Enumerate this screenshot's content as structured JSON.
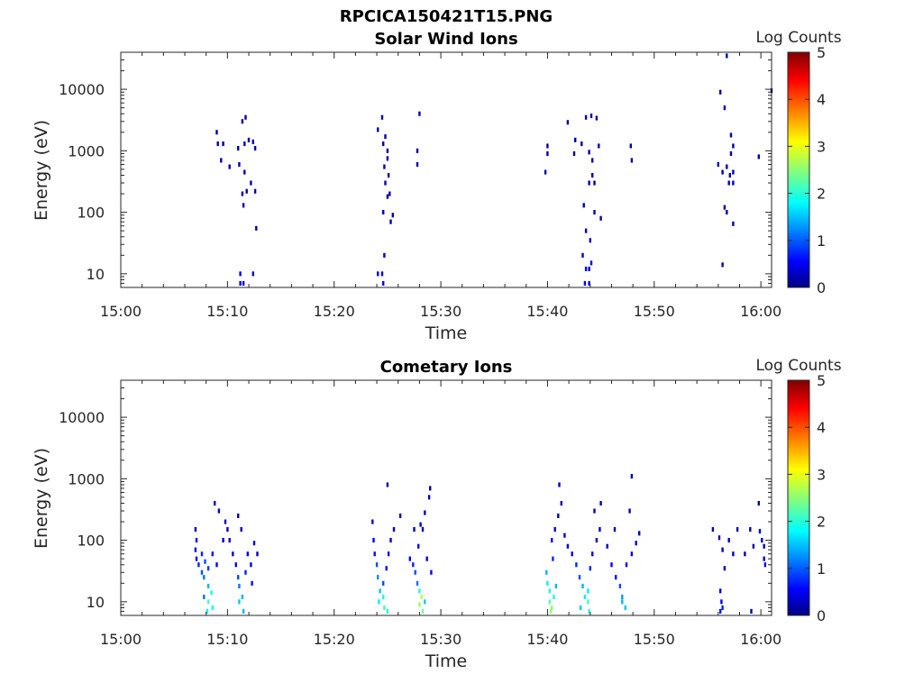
{
  "figure": {
    "title": "RPCICA150421T15.PNG"
  },
  "colormap": {
    "name": "jet",
    "stops": [
      "#00007f",
      "#0000ff",
      "#00ffff",
      "#ffff00",
      "#ff0000",
      "#7f0000"
    ]
  },
  "chart_data": [
    {
      "type": "heatmap",
      "title": "Solar Wind Ions",
      "xlabel": "Time",
      "ylabel": "Energy (eV)",
      "x_ticks": [
        "15:00",
        "15:10",
        "15:20",
        "15:30",
        "15:40",
        "15:50",
        "16:00"
      ],
      "x_range_minutes": [
        0,
        61
      ],
      "y_ticks": [
        {
          "value": 10,
          "label": "10"
        },
        {
          "value": 100,
          "label": "100"
        },
        {
          "value": 1000,
          "label": "1000"
        },
        {
          "value": 10000,
          "label": "10000"
        }
      ],
      "y_scale": "log",
      "ylim": [
        6,
        40000
      ],
      "colorbar": {
        "label": "Log Counts",
        "min": 0,
        "max": 5,
        "ticks": [
          "0",
          "1",
          "2",
          "3",
          "4",
          "5"
        ]
      },
      "legend": "none",
      "grid": false,
      "cells": [
        [
          9.0,
          2000,
          0.2
        ],
        [
          9.1,
          1300,
          0.2
        ],
        [
          9.6,
          1300,
          0.2
        ],
        [
          9.4,
          700,
          0.2
        ],
        [
          10.2,
          550,
          0.2
        ],
        [
          11.0,
          1100,
          0.2
        ],
        [
          11.4,
          3000,
          0.2
        ],
        [
          11.7,
          3500,
          0.2
        ],
        [
          11.6,
          1300,
          0.2
        ],
        [
          12.0,
          1500,
          0.2
        ],
        [
          12.4,
          1400,
          0.2
        ],
        [
          12.6,
          1100,
          0.2
        ],
        [
          11.1,
          600,
          0.2
        ],
        [
          11.6,
          450,
          0.2
        ],
        [
          12.2,
          300,
          0.2
        ],
        [
          11.8,
          220,
          0.2
        ],
        [
          11.4,
          200,
          0.2
        ],
        [
          12.6,
          220,
          0.2
        ],
        [
          11.5,
          130,
          0.2
        ],
        [
          12.7,
          55,
          0.2
        ],
        [
          11.2,
          10,
          0.5
        ],
        [
          11.2,
          7,
          0.5
        ],
        [
          11.5,
          7,
          0.3
        ],
        [
          12.4,
          10,
          0.3
        ],
        [
          24.1,
          2200,
          0.2
        ],
        [
          24.5,
          3500,
          0.2
        ],
        [
          24.8,
          1700,
          0.2
        ],
        [
          24.6,
          1300,
          0.2
        ],
        [
          25.0,
          1000,
          0.2
        ],
        [
          25.0,
          750,
          0.2
        ],
        [
          24.7,
          550,
          0.2
        ],
        [
          25.1,
          400,
          0.2
        ],
        [
          24.8,
          300,
          0.2
        ],
        [
          25.2,
          200,
          0.2
        ],
        [
          25.0,
          180,
          0.2
        ],
        [
          25.5,
          90,
          0.2
        ],
        [
          25.3,
          70,
          0.2
        ],
        [
          24.6,
          100,
          0.2
        ],
        [
          28.0,
          4000,
          0.2
        ],
        [
          27.8,
          1000,
          0.2
        ],
        [
          27.8,
          600,
          0.2
        ],
        [
          24.1,
          10,
          0.4
        ],
        [
          24.5,
          10,
          0.5
        ],
        [
          24.6,
          7,
          0.5
        ],
        [
          24.7,
          20,
          0.3
        ],
        [
          39.8,
          450,
          0.2
        ],
        [
          40.0,
          1200,
          0.2
        ],
        [
          40.0,
          900,
          0.2
        ],
        [
          41.9,
          2900,
          0.2
        ],
        [
          42.6,
          1500,
          0.2
        ],
        [
          42.5,
          900,
          0.2
        ],
        [
          43.2,
          1300,
          0.2
        ],
        [
          43.6,
          3500,
          0.2
        ],
        [
          44.1,
          3700,
          0.2
        ],
        [
          44.6,
          3400,
          0.2
        ],
        [
          44.2,
          700,
          0.2
        ],
        [
          44.8,
          1200,
          0.2
        ],
        [
          43.9,
          950,
          0.2
        ],
        [
          44.2,
          400,
          0.2
        ],
        [
          43.9,
          300,
          0.2
        ],
        [
          44.4,
          300,
          0.2
        ],
        [
          43.4,
          130,
          0.2
        ],
        [
          44.4,
          100,
          0.2
        ],
        [
          45.0,
          80,
          0.2
        ],
        [
          43.6,
          50,
          0.2
        ],
        [
          44.0,
          35,
          0.3
        ],
        [
          43.3,
          20,
          0.4
        ],
        [
          43.6,
          12,
          0.5
        ],
        [
          43.9,
          12,
          0.5
        ],
        [
          44.1,
          15,
          0.5
        ],
        [
          43.5,
          7,
          0.6
        ],
        [
          43.9,
          7,
          0.6
        ],
        [
          47.8,
          1200,
          0.2
        ],
        [
          47.9,
          700,
          0.2
        ],
        [
          56.2,
          9000,
          0.2
        ],
        [
          56.8,
          35000,
          0.2
        ],
        [
          56.6,
          5000,
          0.2
        ],
        [
          57.2,
          1800,
          0.2
        ],
        [
          57.4,
          1200,
          0.2
        ],
        [
          57.2,
          900,
          0.2
        ],
        [
          56.0,
          600,
          0.2
        ],
        [
          56.4,
          450,
          0.2
        ],
        [
          56.8,
          550,
          0.2
        ],
        [
          57.1,
          400,
          0.2
        ],
        [
          57.4,
          450,
          0.2
        ],
        [
          57.0,
          300,
          0.3
        ],
        [
          57.4,
          300,
          0.3
        ],
        [
          56.6,
          120,
          0.2
        ],
        [
          56.8,
          100,
          0.2
        ],
        [
          57.4,
          65,
          0.2
        ],
        [
          56.4,
          14,
          0.3
        ],
        [
          59.8,
          800,
          0.2
        ],
        [
          61.0,
          9500,
          0.2
        ]
      ]
    },
    {
      "type": "heatmap",
      "title": "Cometary Ions",
      "xlabel": "Time",
      "ylabel": "Energy (eV)",
      "x_ticks": [
        "15:00",
        "15:10",
        "15:20",
        "15:30",
        "15:40",
        "15:50",
        "16:00"
      ],
      "x_range_minutes": [
        0,
        61
      ],
      "y_ticks": [
        {
          "value": 10,
          "label": "10"
        },
        {
          "value": 100,
          "label": "100"
        },
        {
          "value": 1000,
          "label": "1000"
        },
        {
          "value": 10000,
          "label": "10000"
        }
      ],
      "y_scale": "log",
      "ylim": [
        6,
        40000
      ],
      "colorbar": {
        "label": "Log Counts",
        "min": 0,
        "max": 5,
        "ticks": [
          "0",
          "1",
          "2",
          "3",
          "4",
          "5"
        ]
      },
      "legend": "none",
      "grid": false,
      "cells": [
        [
          7.0,
          150,
          0.3
        ],
        [
          7.1,
          100,
          0.5
        ],
        [
          7.0,
          70,
          0.5
        ],
        [
          7.1,
          50,
          0.6
        ],
        [
          7.3,
          40,
          0.8
        ],
        [
          7.6,
          60,
          0.8
        ],
        [
          7.9,
          45,
          1.0
        ],
        [
          8.2,
          35,
          0.9
        ],
        [
          7.8,
          25,
          1.2
        ],
        [
          8.2,
          18,
          1.5
        ],
        [
          8.5,
          14,
          2.0
        ],
        [
          8.2,
          10,
          2.2
        ],
        [
          8.6,
          8,
          2.0
        ],
        [
          8.1,
          7,
          1.8
        ],
        [
          7.8,
          12,
          1.2
        ],
        [
          7.6,
          30,
          1.0
        ],
        [
          8.6,
          60,
          0.7
        ],
        [
          9.0,
          40,
          0.6
        ],
        [
          9.2,
          300,
          0.4
        ],
        [
          8.8,
          400,
          0.3
        ],
        [
          9.8,
          200,
          0.3
        ],
        [
          10.2,
          100,
          0.4
        ],
        [
          10.5,
          60,
          0.4
        ],
        [
          10.8,
          40,
          0.5
        ],
        [
          11.0,
          250,
          0.3
        ],
        [
          11.3,
          150,
          0.3
        ],
        [
          11.0,
          25,
          1.0
        ],
        [
          11.1,
          18,
          1.2
        ],
        [
          11.4,
          12,
          1.5
        ],
        [
          11.1,
          10,
          1.6
        ],
        [
          11.5,
          7,
          1.5
        ],
        [
          11.7,
          30,
          0.8
        ],
        [
          11.9,
          60,
          0.6
        ],
        [
          12.2,
          40,
          0.6
        ],
        [
          12.5,
          90,
          0.4
        ],
        [
          12.8,
          60,
          0.3
        ],
        [
          12.3,
          20,
          0.7
        ],
        [
          10.0,
          150,
          0.3
        ],
        [
          9.6,
          100,
          0.4
        ],
        [
          23.6,
          200,
          0.4
        ],
        [
          23.7,
          100,
          0.6
        ],
        [
          23.8,
          60,
          0.7
        ],
        [
          24.0,
          40,
          1.0
        ],
        [
          24.1,
          25,
          1.3
        ],
        [
          24.3,
          15,
          1.6
        ],
        [
          24.6,
          12,
          2.0
        ],
        [
          24.2,
          10,
          1.8
        ],
        [
          24.7,
          8,
          2.2
        ],
        [
          25.0,
          7,
          2.0
        ],
        [
          24.6,
          20,
          1.0
        ],
        [
          24.9,
          35,
          0.7
        ],
        [
          25.1,
          60,
          0.5
        ],
        [
          25.3,
          100,
          0.4
        ],
        [
          25.6,
          150,
          0.3
        ],
        [
          25.0,
          800,
          0.2
        ],
        [
          26.2,
          250,
          0.3
        ],
        [
          27.1,
          50,
          0.6
        ],
        [
          27.4,
          40,
          0.8
        ],
        [
          27.6,
          30,
          1.0
        ],
        [
          27.8,
          20,
          1.2
        ],
        [
          28.0,
          15,
          2.0
        ],
        [
          28.2,
          12,
          2.8
        ],
        [
          28.0,
          9,
          2.6
        ],
        [
          28.3,
          7,
          2.4
        ],
        [
          28.5,
          10,
          1.6
        ],
        [
          28.1,
          180,
          0.4
        ],
        [
          28.3,
          150,
          0.3
        ],
        [
          28.7,
          50,
          0.5
        ],
        [
          29.1,
          30,
          0.6
        ],
        [
          28.5,
          280,
          0.3
        ],
        [
          29.0,
          700,
          0.2
        ],
        [
          28.9,
          500,
          0.2
        ],
        [
          27.5,
          150,
          0.3
        ],
        [
          27.9,
          80,
          0.5
        ],
        [
          39.9,
          30,
          1.5
        ],
        [
          40.0,
          20,
          1.8
        ],
        [
          40.2,
          15,
          2.0
        ],
        [
          40.2,
          10,
          2.3
        ],
        [
          40.4,
          8,
          2.5
        ],
        [
          40.3,
          7,
          2.6
        ],
        [
          40.6,
          12,
          2.0
        ],
        [
          40.8,
          18,
          1.5
        ],
        [
          40.5,
          50,
          0.8
        ],
        [
          40.4,
          100,
          0.6
        ],
        [
          40.7,
          150,
          0.5
        ],
        [
          41.0,
          250,
          0.3
        ],
        [
          41.3,
          400,
          0.3
        ],
        [
          41.1,
          800,
          0.2
        ],
        [
          41.6,
          120,
          0.4
        ],
        [
          41.9,
          80,
          0.4
        ],
        [
          42.3,
          60,
          0.5
        ],
        [
          42.7,
          40,
          0.8
        ],
        [
          43.0,
          25,
          1.0
        ],
        [
          43.3,
          18,
          1.5
        ],
        [
          43.5,
          12,
          1.8
        ],
        [
          43.8,
          10,
          2.2
        ],
        [
          43.9,
          7,
          2.0
        ],
        [
          43.1,
          8,
          1.6
        ],
        [
          43.8,
          15,
          1.8
        ],
        [
          44.0,
          35,
          0.8
        ],
        [
          44.2,
          60,
          0.6
        ],
        [
          44.6,
          100,
          0.4
        ],
        [
          44.9,
          150,
          0.3
        ],
        [
          44.4,
          300,
          0.3
        ],
        [
          45.0,
          400,
          0.3
        ],
        [
          45.6,
          80,
          0.4
        ],
        [
          46.0,
          40,
          0.6
        ],
        [
          46.4,
          25,
          0.7
        ],
        [
          46.8,
          18,
          1.0
        ],
        [
          47.0,
          12,
          1.4
        ],
        [
          47.3,
          8,
          1.6
        ],
        [
          47.0,
          10,
          1.5
        ],
        [
          47.4,
          40,
          0.6
        ],
        [
          47.9,
          60,
          0.5
        ],
        [
          48.3,
          90,
          0.4
        ],
        [
          48.6,
          130,
          0.3
        ],
        [
          47.7,
          300,
          0.3
        ],
        [
          47.9,
          1100,
          0.2
        ],
        [
          46.3,
          150,
          0.3
        ],
        [
          55.5,
          150,
          0.3
        ],
        [
          56.1,
          110,
          0.3
        ],
        [
          56.4,
          70,
          0.3
        ],
        [
          56.6,
          35,
          0.3
        ],
        [
          56.2,
          15,
          0.5
        ],
        [
          56.3,
          10,
          0.6
        ],
        [
          56.4,
          8,
          0.8
        ],
        [
          56.2,
          7,
          0.7
        ],
        [
          57.0,
          100,
          0.3
        ],
        [
          57.4,
          60,
          0.3
        ],
        [
          57.8,
          150,
          0.3
        ],
        [
          58.5,
          60,
          0.3
        ],
        [
          59.3,
          80,
          0.3
        ],
        [
          59.0,
          150,
          0.3
        ],
        [
          59.8,
          400,
          0.2
        ],
        [
          59.9,
          140,
          0.3
        ],
        [
          60.1,
          100,
          0.3
        ],
        [
          60.3,
          80,
          0.3
        ],
        [
          60.3,
          50,
          0.4
        ],
        [
          60.4,
          40,
          0.5
        ],
        [
          59.1,
          7,
          0.2
        ]
      ]
    }
  ]
}
